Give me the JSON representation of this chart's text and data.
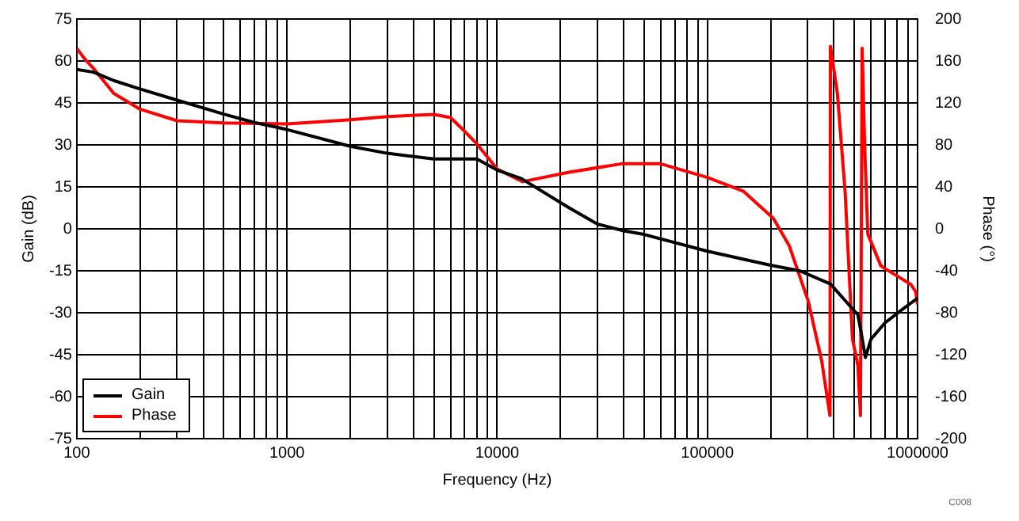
{
  "chart_data": {
    "type": "line",
    "xlabel": "Frequency (Hz)",
    "ylabel": "Gain (dB)",
    "y2label": "Phase (°)",
    "log": "x",
    "grid": true,
    "legend": "bottom left",
    "marker": "none",
    "line_style": "solid",
    "annotations": [
      "C008"
    ],
    "xlim": [
      100,
      1000000
    ],
    "xticks": [
      100,
      {
        "value": 200,
        "label": null
      },
      {
        "value": 300,
        "label": null
      },
      {
        "value": 400,
        "label": null
      },
      {
        "value": 500,
        "label": null
      },
      {
        "value": 600,
        "label": null
      },
      {
        "value": 700,
        "label": null
      },
      {
        "value": 800,
        "label": null
      },
      {
        "value": 900,
        "label": null
      },
      1000,
      {
        "value": 2000,
        "label": null
      },
      {
        "value": 3000,
        "label": null
      },
      {
        "value": 4000,
        "label": null
      },
      {
        "value": 5000,
        "label": null
      },
      {
        "value": 6000,
        "label": null
      },
      {
        "value": 7000,
        "label": null
      },
      {
        "value": 8000,
        "label": null
      },
      {
        "value": 9000,
        "label": null
      },
      10000,
      {
        "value": 20000,
        "label": null
      },
      {
        "value": 30000,
        "label": null
      },
      {
        "value": 40000,
        "label": null
      },
      {
        "value": 50000,
        "label": null
      },
      {
        "value": 60000,
        "label": null
      },
      {
        "value": 70000,
        "label": null
      },
      {
        "value": 80000,
        "label": null
      },
      {
        "value": 90000,
        "label": null
      },
      100000,
      {
        "value": 200000,
        "label": null
      },
      {
        "value": 300000,
        "label": null
      },
      {
        "value": 400000,
        "label": null
      },
      {
        "value": 500000,
        "label": null
      },
      {
        "value": 600000,
        "label": null
      },
      {
        "value": 700000,
        "label": null
      },
      {
        "value": 800000,
        "label": null
      },
      {
        "value": 900000,
        "label": null
      },
      1000000
    ],
    "ylim": [
      -75,
      75
    ],
    "yticks": [
      -75,
      -60,
      -45,
      -30,
      -15,
      0,
      15,
      30,
      45,
      60,
      75
    ],
    "y2lim": [
      -200,
      200
    ],
    "y2ticks": [
      -200,
      -160,
      -120,
      -80,
      -40,
      0,
      40,
      80,
      120,
      160,
      200
    ],
    "series": [
      {
        "name": "Gain",
        "color": "#000000",
        "x": [
          100,
          120,
          150,
          200,
          300,
          500,
          700,
          1000,
          2000,
          3000,
          5000,
          8000,
          10000,
          13000,
          22000,
          30000,
          40000,
          50000,
          100000,
          200000,
          275000,
          385000,
          480000,
          520000,
          535000,
          565000,
          600000,
          700000,
          850000,
          1000000
        ],
        "values": [
          57,
          56,
          53,
          50,
          46,
          41,
          38,
          35.5,
          29.5,
          27,
          25,
          25,
          21,
          18,
          7.5,
          1.7,
          -0.7,
          -2,
          -8,
          -13,
          -15,
          -19.7,
          -27.8,
          -30.7,
          -35.6,
          -46,
          -39.5,
          -33.6,
          -28.7,
          -24.8
        ]
      },
      {
        "name": "Phase",
        "color": "#ff0000",
        "x": [
          100,
          110,
          120,
          150,
          200,
          300,
          500,
          1000,
          2000,
          3000,
          5000,
          6000,
          7000,
          8000,
          10000,
          13200,
          22000,
          39000,
          60000,
          100000,
          148000,
          206000,
          245000,
          302000,
          350000,
          383000,
          385000,
          415000,
          452000,
          490000,
          520000,
          535000,
          545000,
          560000,
          580000,
          668000,
          700000,
          800000,
          930000,
          980000,
          1000000
        ],
        "values": [
          172,
          161,
          153,
          129,
          114,
          103,
          101,
          100,
          104,
          107,
          109,
          106,
          93,
          81,
          57,
          45,
          54,
          62,
          62,
          49,
          36,
          10,
          -16,
          -69,
          -126,
          -178,
          174,
          130,
          36,
          -105,
          -130,
          -178,
          172,
          80,
          -5,
          -35,
          -38,
          -45,
          -53,
          -60,
          -72
        ],
        "axis": "y2"
      }
    ]
  }
}
